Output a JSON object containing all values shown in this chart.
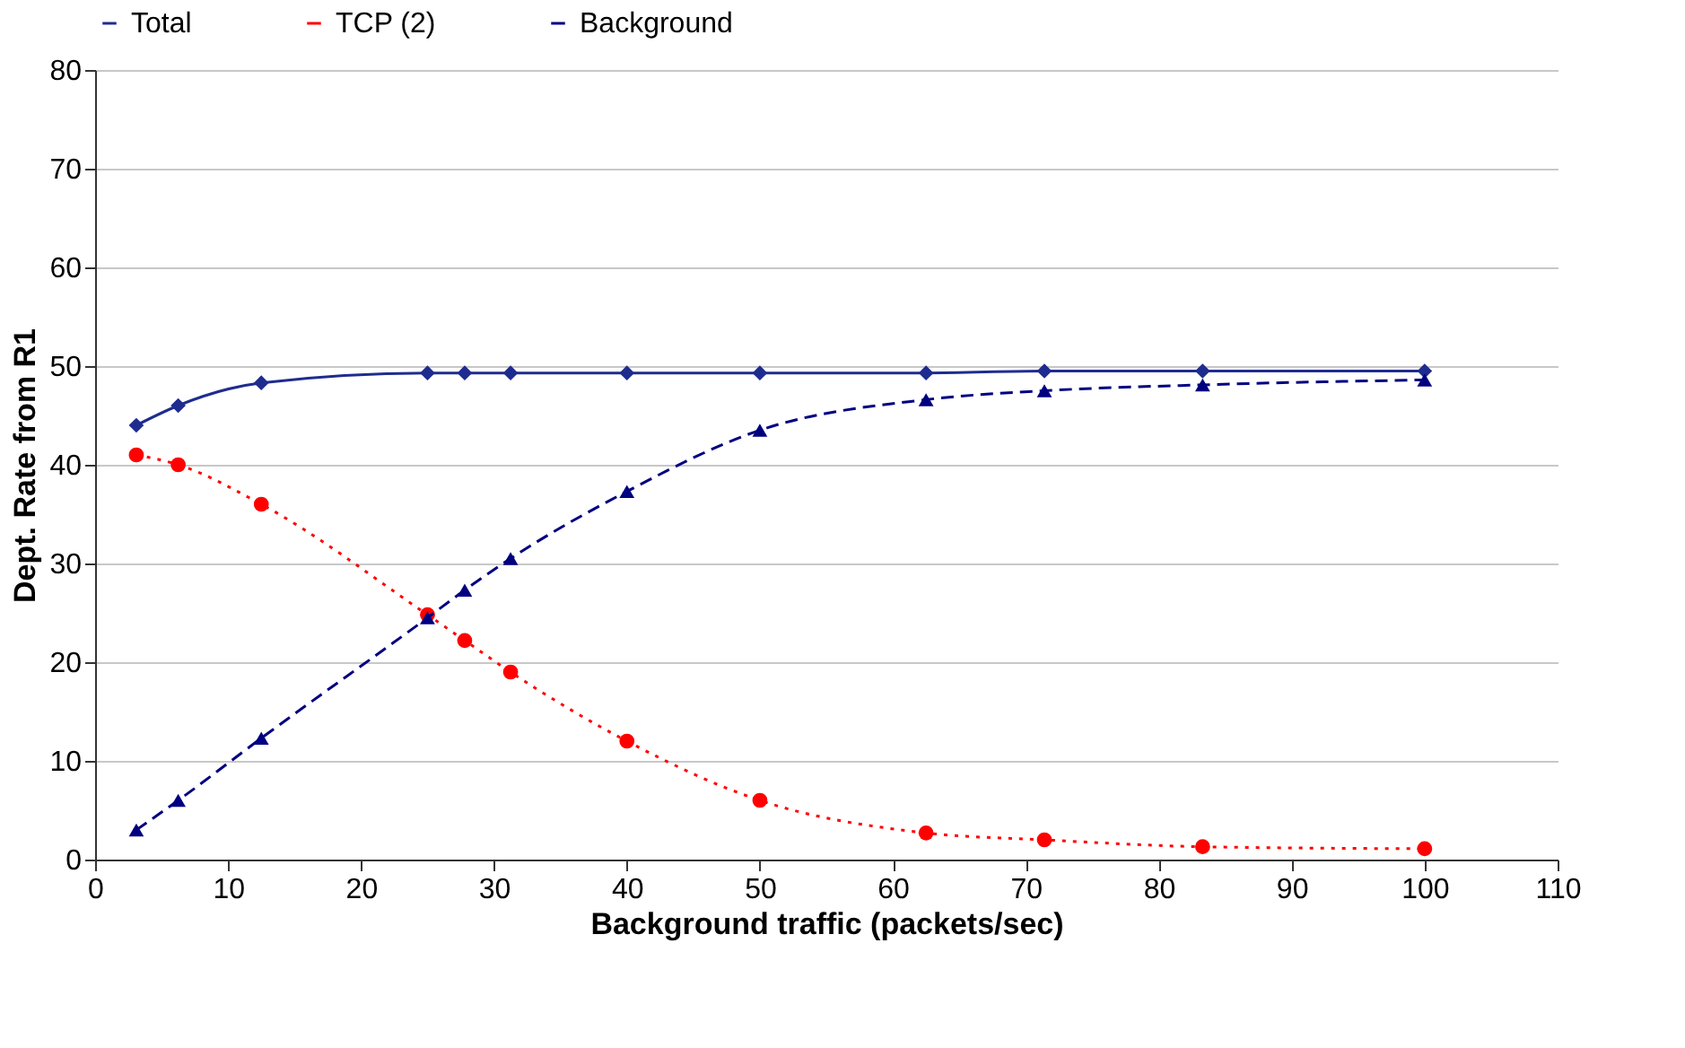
{
  "chart_data": {
    "type": "line",
    "xlabel": "Background traffic (packets/sec)",
    "ylabel": "Dept. Rate from R1",
    "x": [
      3.1,
      6.25,
      12.5,
      25,
      27.8,
      31.25,
      40,
      50,
      62.5,
      71.4,
      83.3,
      100
    ],
    "series": [
      {
        "name": "Total",
        "color": "#1f2c8f",
        "marker": "diamond",
        "line_style": "solid",
        "values": [
          44,
          46,
          48.3,
          49.3,
          49.3,
          49.3,
          49.3,
          49.3,
          49.3,
          49.5,
          49.5,
          49.5
        ]
      },
      {
        "name": "TCP (2)",
        "color": "#ff0000",
        "marker": "circle",
        "line_style": "dotted",
        "values": [
          41,
          40,
          36,
          24.8,
          22.2,
          19,
          12,
          6,
          2.7,
          2,
          1.3,
          1.1
        ]
      },
      {
        "name": "Background",
        "color": "#000080",
        "marker": "triangle",
        "line_style": "dashed",
        "values": [
          3,
          6,
          12.3,
          24.5,
          27.3,
          30.5,
          37.3,
          43.5,
          46.6,
          47.5,
          48.1,
          48.6
        ]
      }
    ],
    "xlim": [
      0,
      110
    ],
    "xticks": [
      0,
      10,
      20,
      30,
      40,
      50,
      60,
      70,
      80,
      90,
      100,
      110
    ],
    "ylim": [
      0,
      80
    ],
    "yticks": [
      0,
      10,
      20,
      30,
      40,
      50,
      60,
      70,
      80
    ],
    "grid": "y",
    "legend": "top"
  }
}
